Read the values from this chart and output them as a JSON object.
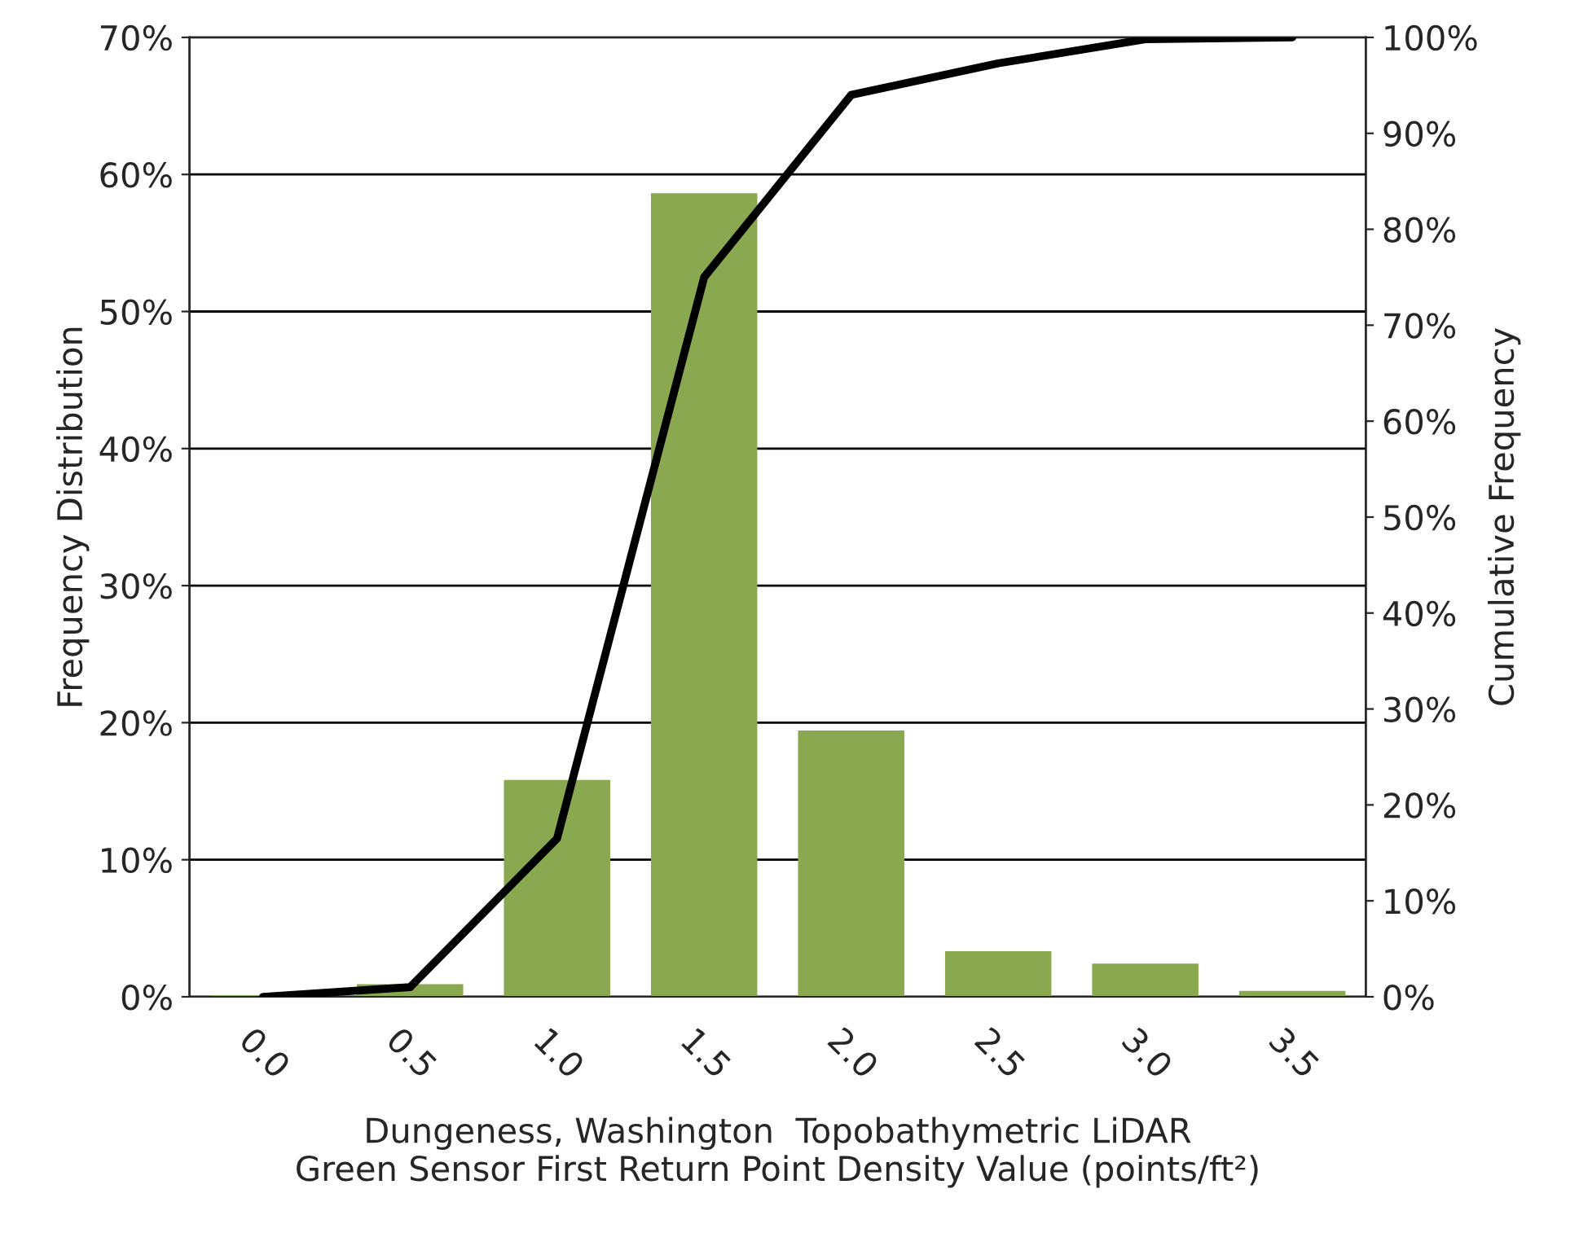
{
  "chart_data": {
    "type": "bar",
    "categories": [
      "0.0",
      "0.5",
      "1.0",
      "1.5",
      "2.0",
      "2.5",
      "3.0",
      "3.5"
    ],
    "series": [
      {
        "color": "#8aa84f",
        "values": [
          0,
          0.8,
          15.7,
          58.5,
          19.3,
          3.2,
          2.3,
          0.3
        ]
      },
      {
        "type": "line",
        "axis": "y2",
        "color": "#000000",
        "values": [
          0,
          1,
          16.5,
          75,
          94,
          97.3,
          99.8,
          100
        ]
      }
    ],
    "xlabel": "Dungeness, Washington  Topobathymetric LiDAR\nGreen Sensor First Return Point Density Value (points/ft²)",
    "ylabel": "Frequency Distribution",
    "y2label": "Cumulative Frequency",
    "ylim": [
      0,
      70
    ],
    "yticks": [
      {
        "value": 0,
        "label": "0%"
      },
      {
        "value": 10,
        "label": "10%"
      },
      {
        "value": 20,
        "label": "20%"
      },
      {
        "value": 30,
        "label": "30%"
      },
      {
        "value": 40,
        "label": "40%"
      },
      {
        "value": 50,
        "label": "50%"
      },
      {
        "value": 60,
        "label": "60%"
      },
      {
        "value": 70,
        "label": "70%"
      }
    ],
    "y2lim": [
      0,
      100
    ],
    "y2ticks": [
      {
        "value": 0,
        "label": "0%"
      },
      {
        "value": 10,
        "label": "10%"
      },
      {
        "value": 20,
        "label": "20%"
      },
      {
        "value": 30,
        "label": "30%"
      },
      {
        "value": 40,
        "label": "40%"
      },
      {
        "value": 50,
        "label": "50%"
      },
      {
        "value": 60,
        "label": "60%"
      },
      {
        "value": 70,
        "label": "70%"
      },
      {
        "value": 80,
        "label": "80%"
      },
      {
        "value": 90,
        "label": "90%"
      },
      {
        "value": 100,
        "label": "100%"
      }
    ],
    "grid": "y",
    "marker": "none",
    "line_style": "solid"
  }
}
